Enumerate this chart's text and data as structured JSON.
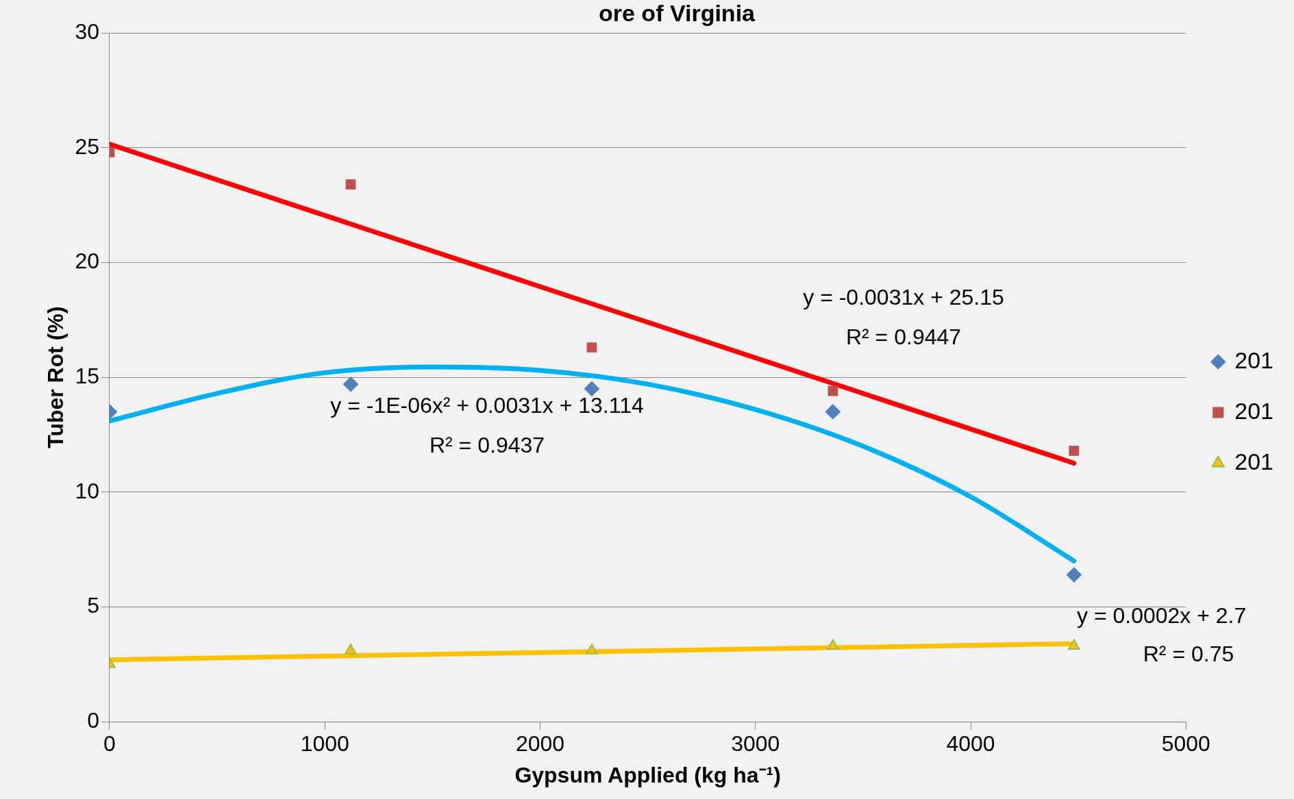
{
  "chart_data": {
    "type": "scatter",
    "title": "ore of Virginia",
    "xlabel": "Gypsum Applied (kg ha⁻¹)",
    "ylabel": "Tuber Rot (%)",
    "xlim": [
      0,
      5000
    ],
    "xticks": [
      0,
      1000,
      2000,
      3000,
      4000,
      5000
    ],
    "ylim": [
      0,
      30
    ],
    "yticks": [
      0,
      5,
      10,
      15,
      20,
      25,
      30
    ],
    "grid": "y",
    "legend": "right",
    "series": [
      {
        "name": "201",
        "marker": "diamond",
        "color": "#4f81bd",
        "x": [
          0,
          1120,
          2240,
          3360,
          4480
        ],
        "values": [
          13.5,
          14.7,
          14.5,
          13.5,
          6.4
        ]
      },
      {
        "name": "201",
        "marker": "square",
        "color": "#c0504d",
        "x": [
          0,
          1120,
          2240,
          3360,
          4480
        ],
        "values": [
          24.8,
          23.4,
          16.3,
          14.4,
          11.8
        ]
      },
      {
        "name": "201",
        "marker": "triangle",
        "color": "#ffc000",
        "x": [
          0,
          1120,
          2240,
          3360,
          4480
        ],
        "values": [
          2.5,
          3.1,
          3.1,
          3.3,
          3.3
        ]
      },
      {
        "type": "line",
        "marker": "none",
        "color": "#00b0f0",
        "x": [
          0,
          500,
          1000,
          1500,
          2000,
          2500,
          3000,
          3500,
          4000,
          4480
        ],
        "values": [
          13.1,
          14.3,
          15.2,
          15.45,
          15.3,
          14.7,
          13.6,
          12.0,
          9.8,
          7.0
        ]
      },
      {
        "type": "line",
        "marker": "none",
        "color": "#ff0000",
        "x": [
          0,
          4480
        ],
        "values": [
          25.15,
          11.26
        ]
      },
      {
        "type": "line",
        "marker": "none",
        "color": "#ffc000",
        "x": [
          0,
          4480
        ],
        "values": [
          2.7,
          3.4
        ]
      }
    ],
    "annotations": [
      "y = -0.0031x + 25.15",
      "R² = 0.9447",
      "y = -1E-06x² + 0.0031x + 13.114",
      "R² = 0.9437",
      "y = 0.0002x + 2.7",
      "R² = 0.75"
    ]
  }
}
